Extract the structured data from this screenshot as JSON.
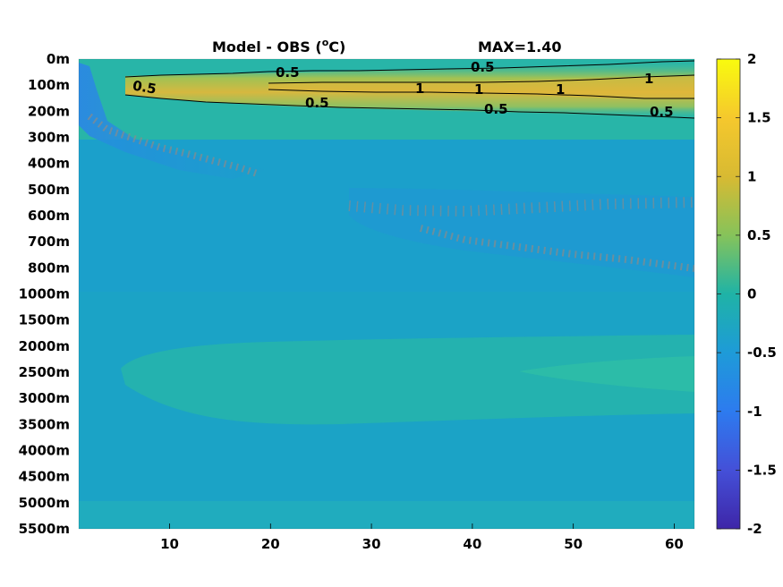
{
  "chart_data": {
    "type": "heatmap",
    "title": "Model - OBS (",
    "title_unit_sup": "o",
    "title_unit_tail": "C)",
    "max_label": "MAX=1.40",
    "xlabel": "",
    "ylabel": "",
    "x_ticks": [
      "10",
      "20",
      "30",
      "40",
      "50",
      "60"
    ],
    "x_tick_values": [
      10,
      20,
      30,
      40,
      50,
      60
    ],
    "xlim": [
      1,
      62
    ],
    "y_tick_labels": [
      "0m",
      "100m",
      "200m",
      "300m",
      "400m",
      "500m",
      "600m",
      "700m",
      "800m",
      "1000m",
      "1500m",
      "2000m",
      "2500m",
      "3000m",
      "3500m",
      "4000m",
      "4500m",
      "5000m",
      "5500m"
    ],
    "colorbar": {
      "ticks": [
        "2",
        "1.5",
        "1",
        "0.5",
        "0",
        "-0.5",
        "-1",
        "-1.5",
        "-2"
      ],
      "tick_values": [
        2,
        1.5,
        1,
        0.5,
        0,
        -0.5,
        -1,
        -1.5,
        -2
      ],
      "range": [
        -2,
        2
      ],
      "colormap": "parula"
    },
    "contour_labels": [
      {
        "text": "0.5",
        "x": 24,
        "depth_index": 0.5
      },
      {
        "text": "0.5",
        "x": 40,
        "depth_index": 0.3
      },
      {
        "text": "0.5",
        "x": 7,
        "depth_index": 1.1
      },
      {
        "text": "1",
        "x": 36,
        "depth_index": 1.15
      },
      {
        "text": "1",
        "x": 45,
        "depth_index": 1.15
      },
      {
        "text": "1",
        "x": 53,
        "depth_index": 1.15
      },
      {
        "text": "1",
        "x": 59,
        "depth_index": 0.75
      },
      {
        "text": "0.5",
        "x": 27,
        "depth_index": 1.7
      },
      {
        "text": "0.5",
        "x": 42,
        "depth_index": 1.9
      },
      {
        "text": "0.5",
        "x": 60,
        "depth_index": 2.0
      }
    ],
    "field_summary": {
      "surface_warm_band_depth": "50m-200m",
      "warm_band_peak": 1.4,
      "shallow_west_cold_anomaly": -0.6,
      "interior_background": -0.2,
      "abyssal_band_2000m_3000m": 0.0,
      "grid": false
    }
  }
}
